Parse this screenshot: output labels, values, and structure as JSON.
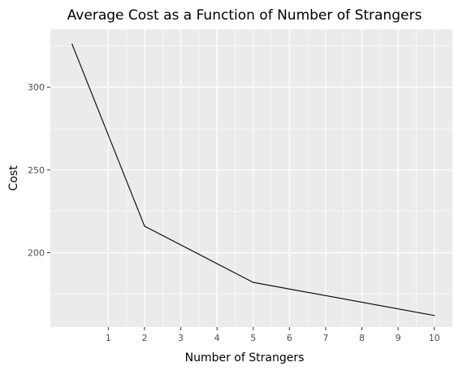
{
  "chart_data": {
    "type": "line",
    "title": "Average Cost as a Function of Number of Strangers",
    "xlabel": "Number of Strangers",
    "ylabel": "Cost",
    "x": [
      0,
      2,
      5,
      10
    ],
    "series": [
      {
        "values": [
          326,
          216,
          182,
          162
        ],
        "color": "#000000"
      }
    ],
    "xticks": [
      1,
      2,
      3,
      4,
      5,
      6,
      7,
      8,
      9,
      10
    ],
    "yticks": [
      200,
      250,
      300
    ],
    "xlim": [
      -0.6,
      10.5
    ],
    "ylim": [
      155,
      335
    ],
    "grid": true,
    "panel_color": "#ebebeb",
    "grid_color": "#ffffff"
  }
}
